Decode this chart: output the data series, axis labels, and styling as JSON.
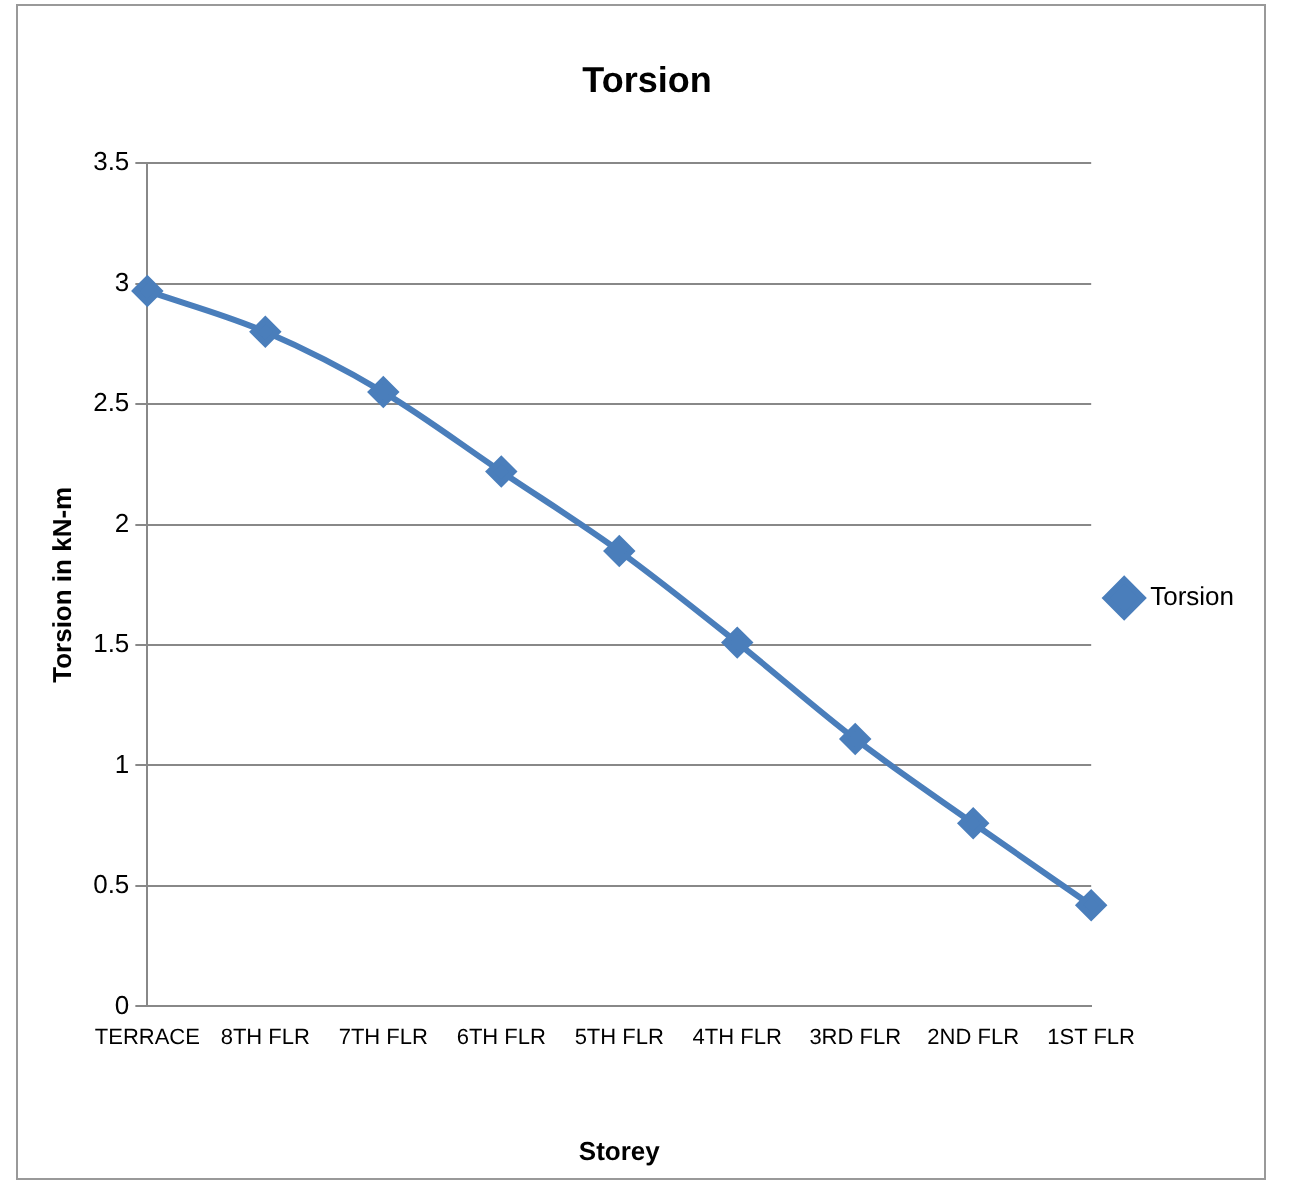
{
  "chart_data": {
    "type": "line",
    "title": "Torsion",
    "xlabel": "Storey",
    "ylabel": "Torsion in kN-m",
    "categories": [
      "TERRACE",
      "8TH FLR",
      "7TH FLR",
      "6TH FLR",
      "5TH FLR",
      "4TH FLR",
      "3RD FLR",
      "2ND FLR",
      "1ST FLR"
    ],
    "series": [
      {
        "name": "Torsion",
        "color": "#4a7ebb",
        "values": [
          2.97,
          2.8,
          2.55,
          2.22,
          1.89,
          1.51,
          1.11,
          0.76,
          0.42
        ]
      }
    ],
    "ylim": [
      0,
      3.5
    ],
    "yticks": [
      0,
      0.5,
      1,
      1.5,
      2,
      2.5,
      3,
      3.5
    ],
    "grid": "y",
    "legend": "right",
    "marker": "diamond",
    "line_style": "solid"
  }
}
